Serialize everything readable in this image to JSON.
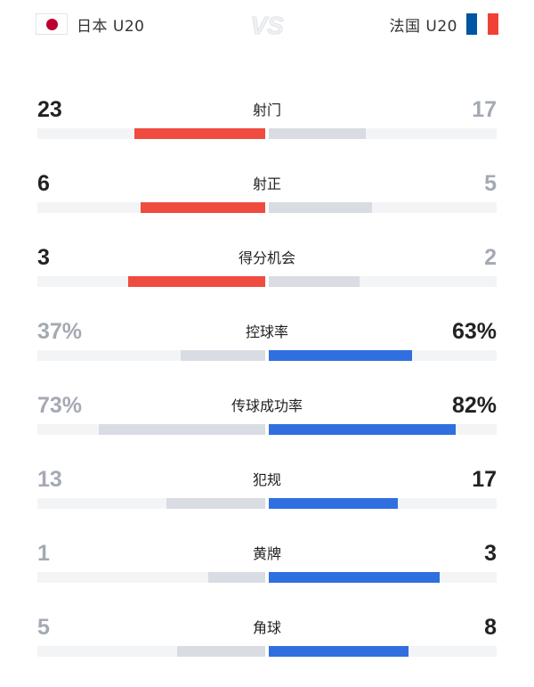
{
  "header": {
    "home_team": "日本 U20",
    "away_team": "法国 U20",
    "vs_text": "VS",
    "home_flag_icon": "flag-japan-icon",
    "away_flag_icon": "flag-france-icon"
  },
  "colors": {
    "home_bar": "#ef4b3f",
    "away_bar": "#2f6fe0",
    "trailing_bar": "#d9dce3",
    "japan_red": "#bc002d",
    "france_blue": "#0055a4",
    "france_red": "#ef4135"
  },
  "stats": [
    {
      "label": "射门",
      "home": "23",
      "away": "17",
      "home_share": 0.575,
      "away_share": 0.425,
      "leader": "home"
    },
    {
      "label": "射正",
      "home": "6",
      "away": "5",
      "home_share": 0.545,
      "away_share": 0.455,
      "leader": "home"
    },
    {
      "label": "得分机会",
      "home": "3",
      "away": "2",
      "home_share": 0.6,
      "away_share": 0.4,
      "leader": "home"
    },
    {
      "label": "控球率",
      "home": "37%",
      "away": "63%",
      "home_share": 0.37,
      "away_share": 0.63,
      "leader": "away"
    },
    {
      "label": "传球成功率",
      "home": "73%",
      "away": "82%",
      "home_share": 0.73,
      "away_share": 0.82,
      "leader": "away"
    },
    {
      "label": "犯规",
      "home": "13",
      "away": "17",
      "home_share": 0.433,
      "away_share": 0.567,
      "leader": "away"
    },
    {
      "label": "黄牌",
      "home": "1",
      "away": "3",
      "home_share": 0.25,
      "away_share": 0.75,
      "leader": "away"
    },
    {
      "label": "角球",
      "home": "5",
      "away": "8",
      "home_share": 0.385,
      "away_share": 0.615,
      "leader": "away"
    }
  ]
}
